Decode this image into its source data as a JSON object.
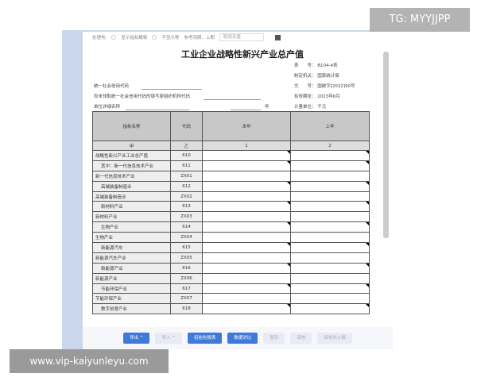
{
  "toolbar": {
    "label": "处理地:",
    "opt1": "显示指标解释",
    "opt2": "不显示零",
    "ref": "参考同期、上期",
    "select": "取消无值"
  },
  "title": "工业企业战略性新兴产业总产值",
  "meta": [
    "表　　号： B104-4表",
    "制定机关： 国家统计局",
    "文　　号： 国统字[2022]90号",
    "有效期至： 2023年6月",
    "计量单位： 千元"
  ],
  "fields": {
    "credit": "统一社会信用代码",
    "nocredit": "尚未领取统一社会信用代码的填写原组织机构代码",
    "unit": "单位详细名称",
    "year": "年"
  },
  "table": {
    "headers": [
      "指标名称",
      "代码",
      "本年",
      "上年"
    ],
    "sub": [
      "甲",
      "乙",
      "1",
      "2"
    ],
    "rows": [
      {
        "name": "战略性新兴产业工业总产值",
        "code": "610",
        "indent": false,
        "input": true
      },
      {
        "name": "其中：新一代信息技术产业",
        "code": "611",
        "indent": true,
        "input": true
      },
      {
        "name": "新一代信息技术产业",
        "code": "ZX01",
        "indent": false,
        "input": false
      },
      {
        "name": "高端装备制造业",
        "code": "612",
        "indent": true,
        "input": true
      },
      {
        "name": "高端装备制造业",
        "code": "ZX02",
        "indent": false,
        "input": false
      },
      {
        "name": "新材料产业",
        "code": "613",
        "indent": true,
        "input": true
      },
      {
        "name": "新材料产业",
        "code": "ZX03",
        "indent": false,
        "input": false
      },
      {
        "name": "生物产业",
        "code": "614",
        "indent": true,
        "input": true
      },
      {
        "name": "生物产业",
        "code": "ZX04",
        "indent": false,
        "input": false
      },
      {
        "name": "新能源汽车",
        "code": "615",
        "indent": true,
        "input": true
      },
      {
        "name": "新能源汽车产业",
        "code": "ZX05",
        "indent": false,
        "input": false
      },
      {
        "name": "新能源产业",
        "code": "616",
        "indent": true,
        "input": true
      },
      {
        "name": "新能源产业",
        "code": "ZX06",
        "indent": false,
        "input": false
      },
      {
        "name": "节能环保产业",
        "code": "617",
        "indent": true,
        "input": true
      },
      {
        "name": "节能环保产业",
        "code": "ZX07",
        "indent": false,
        "input": false
      },
      {
        "name": "数字创意产业",
        "code": "618",
        "indent": true,
        "input": true
      }
    ]
  },
  "buttons": [
    {
      "label": "导出 ^",
      "primary": true
    },
    {
      "label": "导入 ^",
      "primary": false
    },
    {
      "label": "初始化报表",
      "primary": true
    },
    {
      "label": "数据对比",
      "primary": true
    },
    {
      "label": "暂存",
      "primary": false
    },
    {
      "label": "审核",
      "primary": false
    },
    {
      "label": "审核并上报",
      "primary": false
    }
  ],
  "watermarks": {
    "top": "TG: MYYJJPP",
    "bottom": "www.vip-kaiyunleyu.com"
  }
}
